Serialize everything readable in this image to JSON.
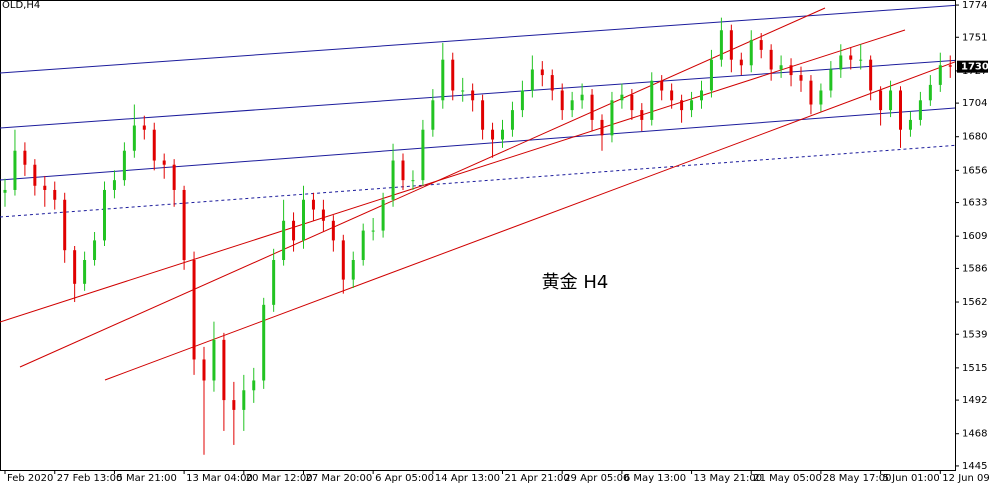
{
  "chart_data": {
    "type": "candlestick",
    "title": "OLD,H4",
    "watermark": "黄金 H4",
    "up_color": "#22c322",
    "down_color": "#e00000",
    "ylim": [
      1442.1,
      1777.6
    ],
    "yticks": [
      1774,
      1751,
      1727,
      1704,
      1680,
      1656,
      1633,
      1609,
      1586,
      1562,
      1539,
      1515,
      1492,
      1468,
      1445
    ],
    "last_price": 1730,
    "categories": [
      "Feb 2020",
      null,
      null,
      null,
      null,
      "27 Feb 13:00",
      null,
      null,
      null,
      null,
      null,
      "5 Mar 21:00",
      null,
      null,
      null,
      null,
      null,
      null,
      "13 Mar 04:00",
      null,
      null,
      null,
      null,
      null,
      "20 Mar 12:00",
      null,
      null,
      null,
      null,
      null,
      "27 Mar 20:00",
      null,
      null,
      null,
      null,
      null,
      null,
      "6 Apr 05:00",
      null,
      null,
      null,
      null,
      null,
      "14 Apr 13:00",
      null,
      null,
      null,
      null,
      null,
      null,
      "21 Apr 21:00",
      null,
      null,
      null,
      null,
      null,
      "29 Apr 05:00",
      null,
      null,
      null,
      null,
      null,
      "6 May 13:00",
      null,
      null,
      null,
      null,
      null,
      null,
      "13 May 21:00",
      null,
      null,
      null,
      null,
      null,
      "21 May 05:00",
      null,
      null,
      null,
      null,
      null,
      null,
      "28 May 17:00",
      null,
      null,
      null,
      null,
      null,
      "5 Jun 01:00",
      null,
      null,
      null,
      null,
      null,
      "12 Jun 09",
      null
    ],
    "open": [
      1640,
      1642,
      1670,
      1660,
      1645,
      1642,
      1635,
      1599,
      1575,
      1592,
      1606,
      1642,
      1649,
      1670,
      1688,
      1685,
      1663,
      1660,
      1642,
      1592,
      1521,
      1506,
      1535,
      1492,
      1485,
      1499,
      1506,
      1560,
      1592,
      1620,
      1606,
      1635,
      1628,
      1620,
      1606,
      1578,
      1592,
      1613,
      1613,
      1635,
      1663,
      1649,
      1649,
      1685,
      1706,
      1735,
      1713,
      1713,
      1706,
      1685,
      1678,
      1685,
      1699,
      1713,
      1728,
      1724,
      1713,
      1699,
      1706,
      1710,
      1692,
      1681,
      1706,
      1710,
      1699,
      1692,
      1720,
      1713,
      1706,
      1699,
      1706,
      1713,
      1735,
      1756,
      1735,
      1731,
      1749,
      1742,
      1728,
      1731,
      1724,
      1720,
      1703,
      1713,
      1728,
      1738,
      1735,
      1735,
      1713,
      1699,
      1713,
      1685,
      1692,
      1706,
      1717,
      1731
    ],
    "high": [
      1650,
      1685,
      1676,
      1664,
      1652,
      1648,
      1640,
      1602,
      1598,
      1612,
      1648,
      1656,
      1676,
      1703,
      1695,
      1690,
      1668,
      1664,
      1645,
      1598,
      1530,
      1548,
      1540,
      1505,
      1510,
      1515,
      1565,
      1600,
      1635,
      1626,
      1645,
      1640,
      1635,
      1624,
      1610,
      1598,
      1618,
      1622,
      1640,
      1675,
      1668,
      1656,
      1692,
      1714,
      1747,
      1740,
      1722,
      1718,
      1710,
      1690,
      1692,
      1705,
      1720,
      1738,
      1734,
      1728,
      1718,
      1712,
      1718,
      1714,
      1696,
      1712,
      1718,
      1714,
      1704,
      1726,
      1724,
      1718,
      1710,
      1712,
      1720,
      1742,
      1765,
      1760,
      1740,
      1756,
      1754,
      1746,
      1738,
      1736,
      1730,
      1724,
      1718,
      1734,
      1746,
      1744,
      1746,
      1738,
      1716,
      1720,
      1716,
      1698,
      1712,
      1724,
      1740,
      1738
    ],
    "low": [
      1630,
      1638,
      1652,
      1638,
      1630,
      1628,
      1590,
      1562,
      1570,
      1588,
      1602,
      1636,
      1645,
      1665,
      1678,
      1656,
      1650,
      1630,
      1585,
      1510,
      1453,
      1498,
      1470,
      1460,
      1470,
      1490,
      1500,
      1555,
      1588,
      1598,
      1600,
      1620,
      1612,
      1598,
      1568,
      1572,
      1588,
      1606,
      1608,
      1630,
      1642,
      1642,
      1645,
      1680,
      1700,
      1706,
      1705,
      1698,
      1678,
      1665,
      1672,
      1680,
      1694,
      1708,
      1716,
      1706,
      1692,
      1694,
      1700,
      1684,
      1670,
      1676,
      1700,
      1692,
      1684,
      1688,
      1706,
      1700,
      1690,
      1694,
      1700,
      1708,
      1730,
      1726,
      1724,
      1726,
      1736,
      1720,
      1722,
      1716,
      1712,
      1696,
      1698,
      1708,
      1722,
      1728,
      1728,
      1706,
      1688,
      1694,
      1672,
      1680,
      1688,
      1702,
      1712,
      1722
    ],
    "close": [
      1642,
      1670,
      1660,
      1645,
      1642,
      1635,
      1599,
      1575,
      1592,
      1606,
      1642,
      1649,
      1670,
      1688,
      1685,
      1663,
      1660,
      1642,
      1592,
      1521,
      1506,
      1535,
      1492,
      1485,
      1499,
      1506,
      1560,
      1592,
      1620,
      1606,
      1635,
      1628,
      1620,
      1606,
      1578,
      1592,
      1613,
      1613,
      1635,
      1663,
      1649,
      1649,
      1685,
      1706,
      1735,
      1713,
      1713,
      1706,
      1685,
      1678,
      1685,
      1699,
      1713,
      1728,
      1724,
      1713,
      1699,
      1706,
      1710,
      1692,
      1681,
      1706,
      1710,
      1699,
      1692,
      1720,
      1713,
      1706,
      1699,
      1706,
      1713,
      1735,
      1756,
      1735,
      1731,
      1749,
      1742,
      1728,
      1731,
      1724,
      1720,
      1703,
      1713,
      1728,
      1738,
      1735,
      1735,
      1713,
      1699,
      1713,
      1685,
      1692,
      1706,
      1717,
      1731,
      1730
    ]
  }
}
